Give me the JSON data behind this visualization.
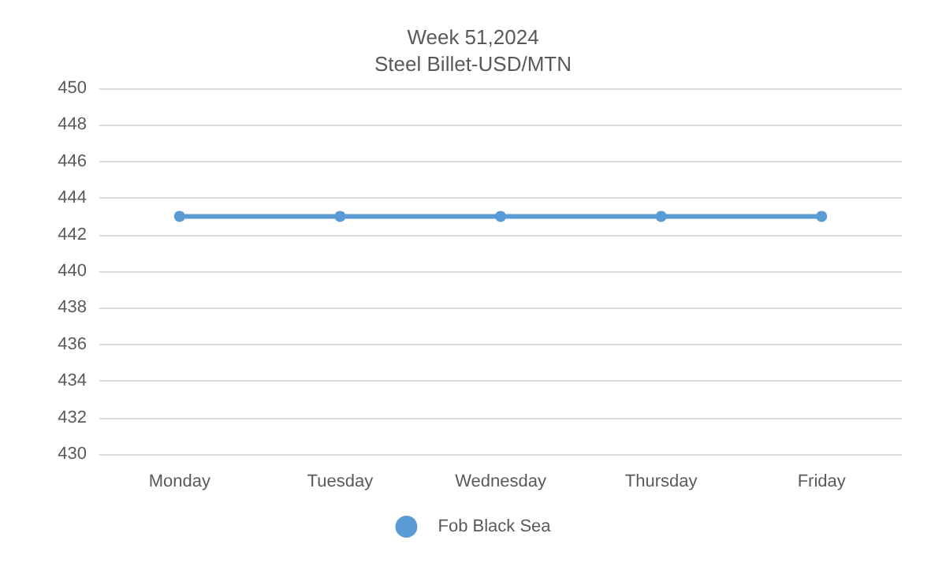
{
  "chart_data": {
    "type": "line",
    "title": "Week 51,2024",
    "subtitle": "Steel Billet-USD/MTN",
    "categories": [
      "Monday",
      "Tuesday",
      "Wednesday",
      "Thursday",
      "Friday"
    ],
    "series": [
      {
        "name": "Fob Black Sea",
        "color": "#5b9bd5",
        "values": [
          443,
          443,
          443,
          443,
          443
        ]
      }
    ],
    "ylim": [
      430,
      450
    ],
    "yticks": [
      430,
      432,
      434,
      436,
      438,
      440,
      442,
      444,
      446,
      448,
      450
    ],
    "grid": "y",
    "legend": "bottom",
    "marker": "circle",
    "line_style": "solid"
  }
}
